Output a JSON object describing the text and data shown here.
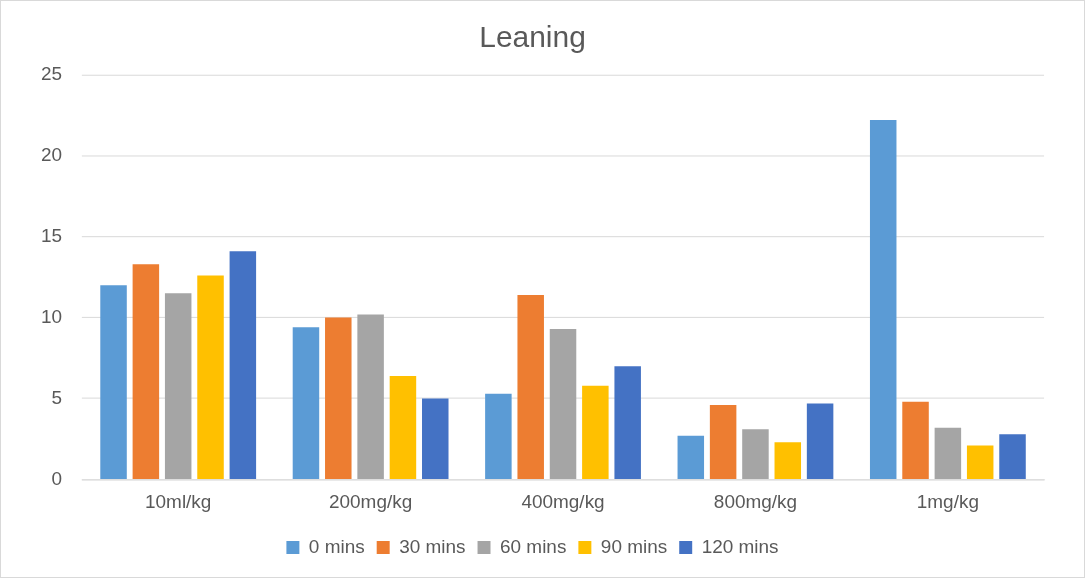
{
  "chart_data": {
    "type": "bar",
    "title": "Leaning",
    "categories": [
      "10ml/kg",
      "200mg/kg",
      "400mg/kg",
      "800mg/kg",
      "1mg/kg"
    ],
    "series": [
      {
        "name": "0 mins",
        "color": "#5b9bd5",
        "values": [
          12.0,
          9.4,
          5.3,
          2.7,
          22.2
        ]
      },
      {
        "name": "30 mins",
        "color": "#ed7d31",
        "values": [
          13.3,
          10.0,
          11.4,
          4.6,
          4.8
        ]
      },
      {
        "name": "60 mins",
        "color": "#a5a5a5",
        "values": [
          11.5,
          10.2,
          9.3,
          3.1,
          3.2
        ]
      },
      {
        "name": "90 mins",
        "color": "#ffc000",
        "values": [
          12.6,
          6.4,
          5.8,
          2.3,
          2.1
        ]
      },
      {
        "name": "120 mins",
        "color": "#4472c4",
        "values": [
          14.1,
          5.0,
          7.0,
          4.7,
          2.8
        ]
      }
    ],
    "ylim": [
      0,
      25
    ],
    "yticks": [
      0,
      5,
      10,
      15,
      20,
      25
    ],
    "grid": "y",
    "legend": "bottom"
  }
}
